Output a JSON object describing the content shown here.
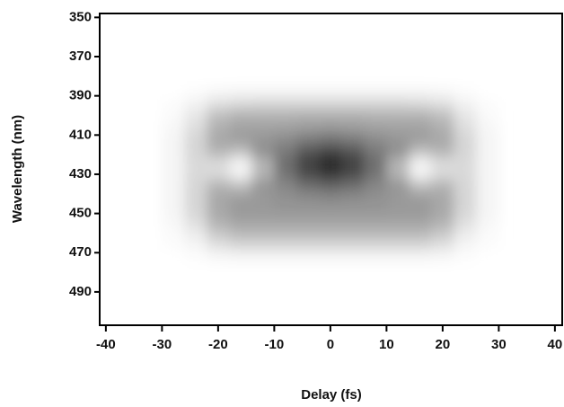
{
  "chart_data": {
    "type": "heatmap",
    "x_label": "Delay (fs)",
    "y_label": "Wavelength (nm)",
    "xlim": [
      -41.1,
      41.3
    ],
    "xticks": [
      -40,
      -30,
      -20,
      -10,
      0,
      10,
      20,
      30,
      40
    ],
    "ylim": [
      348,
      507
    ],
    "yticks": [
      350,
      370,
      390,
      410,
      430,
      450,
      470,
      490
    ],
    "y_inverted": true,
    "colors": [
      "#ffffff",
      "#000000"
    ],
    "x": [
      -28,
      -24,
      -20,
      -16,
      -12,
      -8,
      -4,
      0,
      4,
      8,
      12,
      16,
      20,
      24,
      28
    ],
    "y": [
      388,
      394,
      400,
      406,
      412,
      418,
      424,
      430,
      436,
      442,
      448,
      454,
      460,
      466,
      472
    ],
    "z": [
      [
        0,
        0.01,
        0.03,
        0.04,
        0.04,
        0.04,
        0.04,
        0.04,
        0.04,
        0.04,
        0.04,
        0.04,
        0.03,
        0.01,
        0
      ],
      [
        0.01,
        0.05,
        0.12,
        0.15,
        0.16,
        0.16,
        0.16,
        0.16,
        0.16,
        0.16,
        0.16,
        0.15,
        0.12,
        0.05,
        0.01
      ],
      [
        0.02,
        0.1,
        0.25,
        0.3,
        0.3,
        0.3,
        0.31,
        0.31,
        0.31,
        0.3,
        0.3,
        0.3,
        0.25,
        0.1,
        0.02
      ],
      [
        0.03,
        0.13,
        0.31,
        0.36,
        0.36,
        0.37,
        0.39,
        0.4,
        0.39,
        0.37,
        0.36,
        0.36,
        0.31,
        0.13,
        0.03
      ],
      [
        0.04,
        0.16,
        0.34,
        0.38,
        0.41,
        0.45,
        0.51,
        0.54,
        0.51,
        0.45,
        0.41,
        0.38,
        0.34,
        0.16,
        0.04
      ],
      [
        0.04,
        0.16,
        0.3,
        0.25,
        0.43,
        0.52,
        0.65,
        0.72,
        0.65,
        0.52,
        0.43,
        0.25,
        0.3,
        0.16,
        0.04
      ],
      [
        0.04,
        0.15,
        0.15,
        0.05,
        0.3,
        0.57,
        0.75,
        0.85,
        0.75,
        0.57,
        0.3,
        0.05,
        0.15,
        0.15,
        0.04
      ],
      [
        0.04,
        0.15,
        0.15,
        0.05,
        0.3,
        0.54,
        0.7,
        0.78,
        0.7,
        0.54,
        0.3,
        0.05,
        0.15,
        0.15,
        0.04
      ],
      [
        0.04,
        0.16,
        0.3,
        0.25,
        0.41,
        0.47,
        0.56,
        0.6,
        0.56,
        0.47,
        0.41,
        0.25,
        0.3,
        0.16,
        0.04
      ],
      [
        0.04,
        0.16,
        0.34,
        0.38,
        0.4,
        0.43,
        0.45,
        0.47,
        0.45,
        0.43,
        0.4,
        0.38,
        0.34,
        0.16,
        0.04
      ],
      [
        0.04,
        0.16,
        0.34,
        0.4,
        0.4,
        0.41,
        0.41,
        0.41,
        0.41,
        0.41,
        0.4,
        0.4,
        0.34,
        0.16,
        0.04
      ],
      [
        0.03,
        0.13,
        0.31,
        0.36,
        0.36,
        0.36,
        0.36,
        0.36,
        0.36,
        0.36,
        0.36,
        0.36,
        0.31,
        0.13,
        0.03
      ],
      [
        0.02,
        0.08,
        0.22,
        0.28,
        0.28,
        0.28,
        0.28,
        0.28,
        0.28,
        0.28,
        0.28,
        0.28,
        0.22,
        0.08,
        0.02
      ],
      [
        0.01,
        0.04,
        0.12,
        0.16,
        0.16,
        0.16,
        0.16,
        0.16,
        0.16,
        0.16,
        0.16,
        0.16,
        0.12,
        0.04,
        0.01
      ],
      [
        0,
        0.01,
        0.03,
        0.04,
        0.04,
        0.04,
        0.04,
        0.04,
        0.04,
        0.04,
        0.04,
        0.04,
        0.03,
        0.01,
        0
      ]
    ]
  }
}
